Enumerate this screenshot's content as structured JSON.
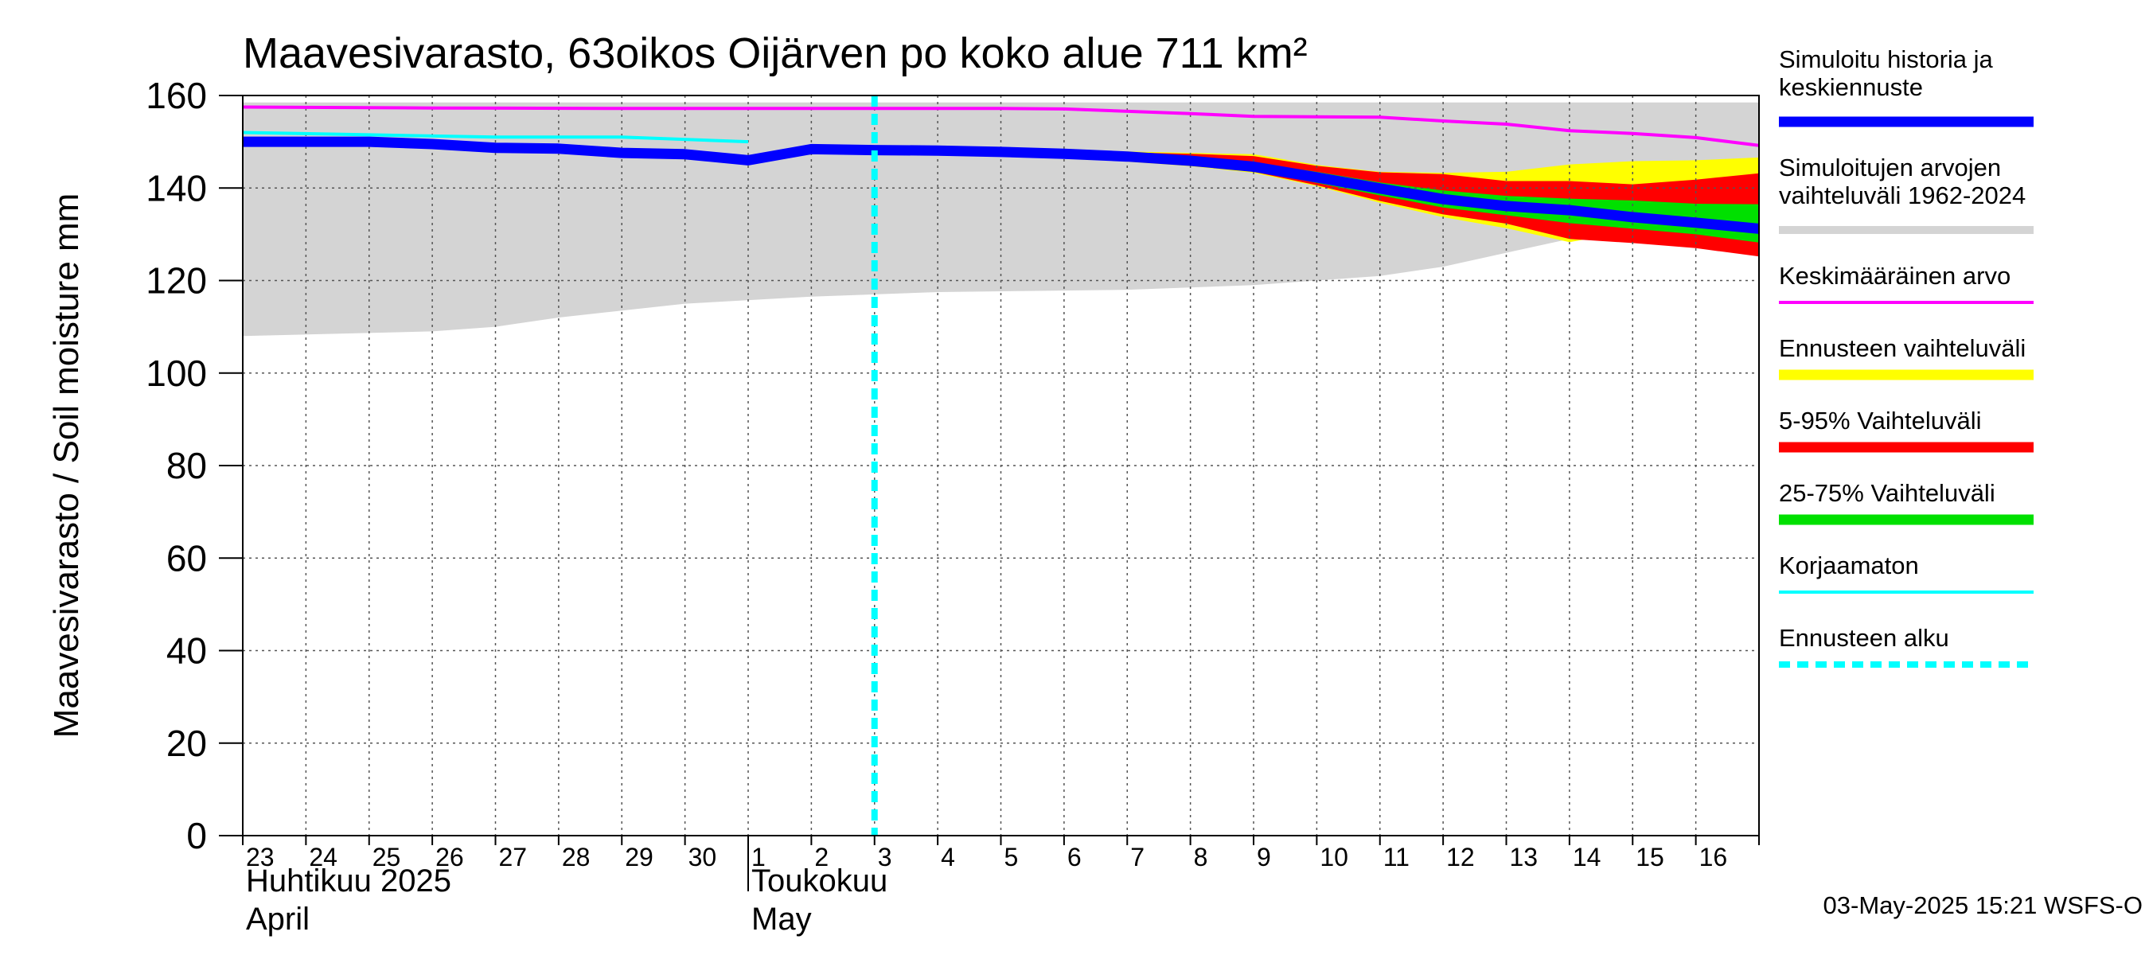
{
  "chart_data": {
    "type": "area",
    "title": "Maavesivarasto, 63oikos Oijärven po koko alue 711 km²",
    "ylabel": "Maavesivarasto / Soil moisture   mm",
    "ylim": [
      0,
      160
    ],
    "yticks": [
      0,
      20,
      40,
      60,
      80,
      100,
      120,
      140,
      160
    ],
    "x_range_days": [
      0,
      24
    ],
    "day_ticks": [
      "23",
      "24",
      "25",
      "26",
      "27",
      "28",
      "29",
      "30",
      "1",
      "2",
      "3",
      "4",
      "5",
      "6",
      "7",
      "8",
      "9",
      "10",
      "11",
      "12",
      "13",
      "14",
      "15",
      "16"
    ],
    "month_labels": [
      {
        "day": 0,
        "fi": "Huhtikuu  2025",
        "en": "April"
      },
      {
        "day": 8,
        "fi": "Toukokuu",
        "en": "May"
      }
    ],
    "forecast_start_day": 10.0,
    "timestamp": "03-May-2025 15:21 WSFS-O",
    "legend": [
      {
        "key": "history",
        "label": [
          "Simuloitu historia ja",
          "keskiennuste"
        ],
        "color": "#0000ff",
        "style": "thick"
      },
      {
        "key": "range_hist",
        "label": [
          "Simuloitujen arvojen",
          "vaihteluväli 1962-2024"
        ],
        "color": "#d4d4d4",
        "style": "line"
      },
      {
        "key": "mean",
        "label": [
          "Keskimääräinen arvo"
        ],
        "color": "#ff00ff",
        "style": "line"
      },
      {
        "key": "ens_range",
        "label": [
          "Ennusteen vaihteluväli"
        ],
        "color": "#ffff00",
        "style": "thick"
      },
      {
        "key": "p5_95",
        "label": [
          "5-95% Vaihteluväli"
        ],
        "color": "#ff0000",
        "style": "thick"
      },
      {
        "key": "p25_75",
        "label": [
          "25-75% Vaihteluväli"
        ],
        "color": "#00e000",
        "style": "thick"
      },
      {
        "key": "uncorrected",
        "label": [
          "Korjaamaton"
        ],
        "color": "#00ffff",
        "style": "line"
      },
      {
        "key": "fc_start",
        "label": [
          "Ennusteen alku"
        ],
        "color": "#00ffff",
        "style": "dashed"
      }
    ],
    "series": [
      {
        "name": "Simuloitujen arvojen vaihteluväli 1962-2024",
        "x": [
          0,
          3,
          4,
          5,
          7,
          9,
          11,
          14,
          16,
          18,
          19,
          20,
          21,
          22,
          23,
          24
        ],
        "upper": [
          158.5,
          158.5,
          158.5,
          158.5,
          158.5,
          158.5,
          158.5,
          158.5,
          158.5,
          158.5,
          158.5,
          158.5,
          158.5,
          158.5,
          158.5,
          158.5
        ],
        "lower": [
          108,
          109,
          110,
          112,
          115,
          116.5,
          117.5,
          118,
          119,
          121,
          123,
          126,
          129,
          132,
          133,
          134
        ]
      },
      {
        "name": "Keskimääräinen arvo",
        "x": [
          0,
          3,
          6,
          9,
          11,
          12,
          13,
          15,
          16,
          18,
          19,
          20,
          21,
          22,
          23,
          24
        ],
        "values": [
          157.5,
          157.3,
          157.2,
          157.2,
          157.2,
          157.2,
          157.1,
          156.1,
          155.5,
          155.3,
          154.5,
          153.8,
          152.4,
          151.8,
          150.9,
          149.2
        ]
      },
      {
        "name": "Korjaamaton",
        "x": [
          0,
          2,
          4,
          6,
          8
        ],
        "values": [
          152,
          151.5,
          151,
          151,
          150
        ]
      },
      {
        "name": "Simuloitu historia ja keskiennuste",
        "x": [
          0,
          1,
          2,
          3,
          4,
          5,
          6,
          7,
          8,
          9,
          10,
          11,
          12,
          13,
          14,
          15,
          16,
          17,
          18,
          19,
          20,
          21,
          22,
          23,
          24
        ],
        "values": [
          150,
          150,
          150,
          149.5,
          148.7,
          148.5,
          147.6,
          147.3,
          146,
          148.4,
          148.2,
          148.1,
          147.8,
          147.4,
          146.8,
          145.9,
          144.6,
          142.3,
          139.9,
          137.6,
          136.1,
          135.2,
          133.7,
          132.5,
          131.2
        ]
      },
      {
        "name": "Ennusteen vaihteluväli",
        "x": [
          10,
          11,
          12,
          13,
          14,
          15,
          16,
          17,
          18,
          19,
          20,
          21,
          22,
          23,
          24
        ],
        "upper": [
          148.3,
          148.3,
          148.2,
          148.1,
          147.9,
          147.6,
          147.3,
          145,
          143.5,
          143.3,
          143.5,
          145.1,
          145.8,
          146,
          146.6
        ],
        "lower": [
          148.1,
          147.8,
          147.2,
          146.6,
          145.7,
          144.7,
          143.3,
          140.4,
          136.8,
          133.7,
          131.3,
          128.3,
          130.7,
          129.1,
          126.1
        ]
      },
      {
        "name": "5-95% Vaihteluväli",
        "x": [
          10,
          11,
          12,
          13,
          14,
          15,
          16,
          17,
          18,
          19,
          20,
          21,
          22,
          23,
          24
        ],
        "upper": [
          148.3,
          148.3,
          148.2,
          148,
          147.7,
          147.4,
          146.9,
          144.8,
          143.4,
          143,
          141.5,
          141.5,
          140.8,
          141.8,
          143.2
        ],
        "lower": [
          148.1,
          147.9,
          147.3,
          146.7,
          145.9,
          145,
          143.5,
          140.6,
          137.2,
          134.3,
          132.3,
          129,
          128.1,
          127,
          125.2
        ]
      },
      {
        "name": "25-75% Vaihteluväli",
        "x": [
          10,
          11,
          12,
          13,
          14,
          15,
          16,
          17,
          18,
          19,
          20,
          21,
          22,
          23,
          24
        ],
        "upper": [
          148.3,
          148.2,
          148,
          147.7,
          147.3,
          146.6,
          145.5,
          143.5,
          141.2,
          139.5,
          138.3,
          137.7,
          137.3,
          136.6,
          136.5
        ],
        "lower": [
          148.1,
          148,
          147.7,
          147.2,
          146.4,
          145.3,
          143.8,
          141.1,
          138.4,
          135.8,
          134.1,
          132.4,
          131.2,
          130,
          128.2
        ]
      }
    ]
  }
}
